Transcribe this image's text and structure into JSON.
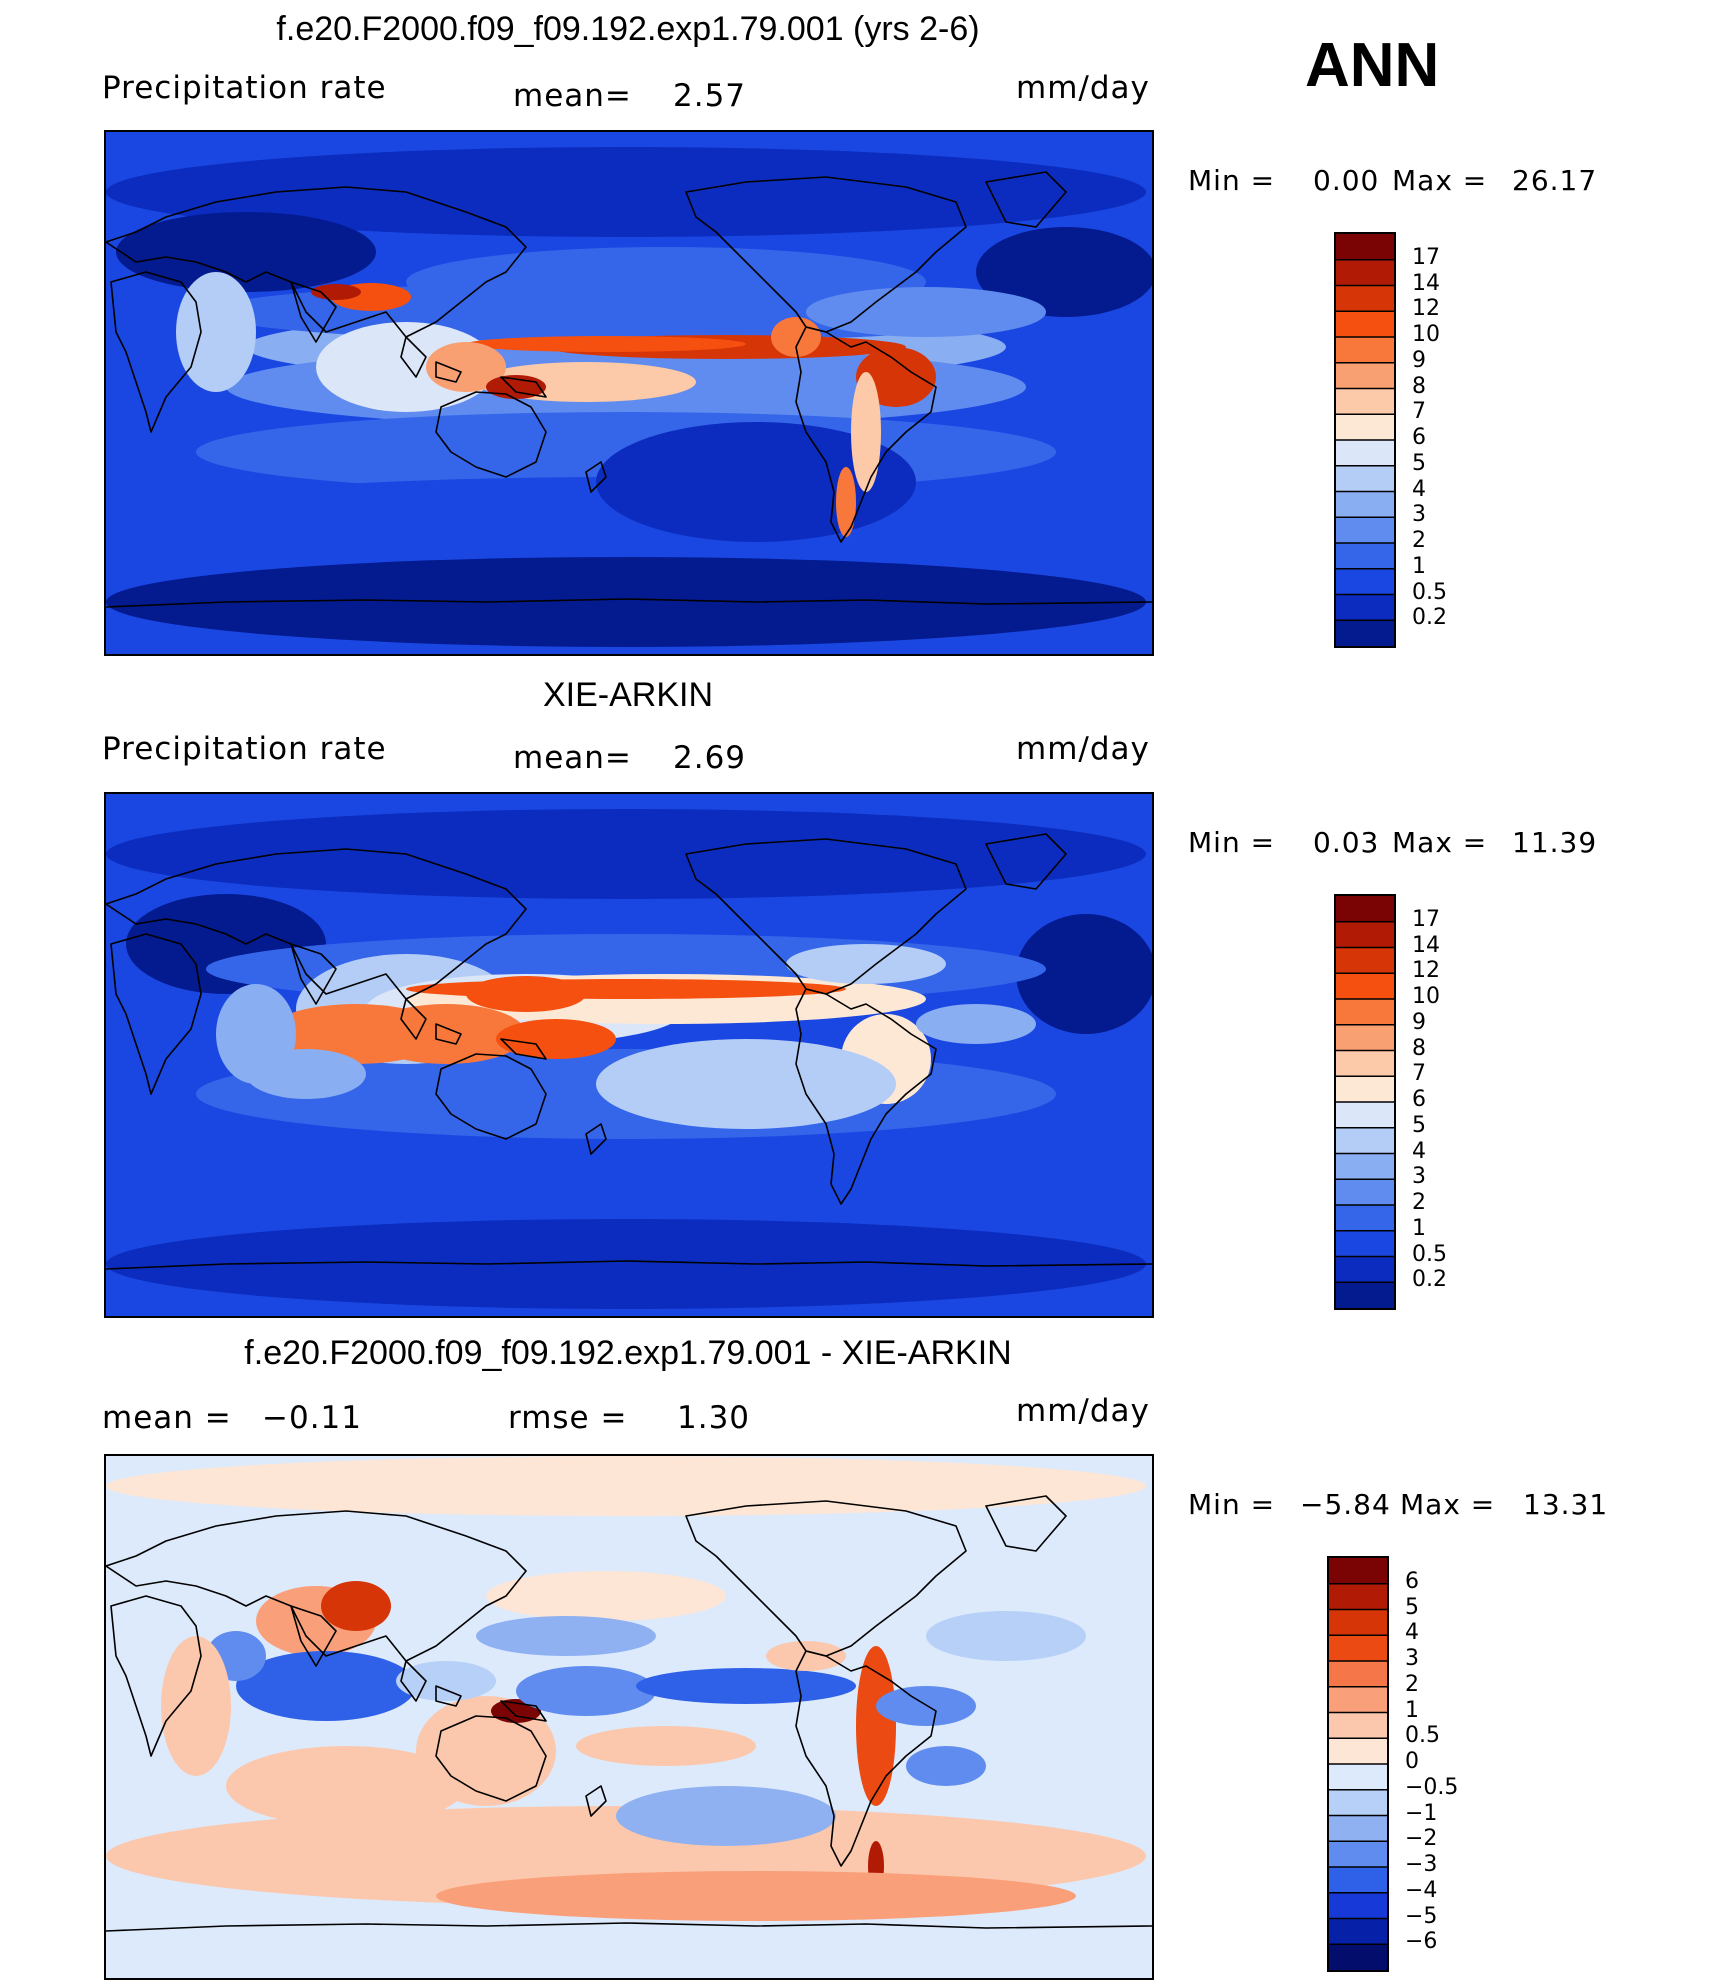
{
  "season": "ANN",
  "panels": [
    {
      "title": "f.e20.F2000.f09_f09.192.exp1.79.001 (yrs 2-6)",
      "left_label": "Precipitation  rate",
      "mid_label": "mean=",
      "mid_value": "2.57",
      "units": "mm/day",
      "minmax": {
        "min_label": "Min  =",
        "min_value": "0.00",
        "max_label": "Max  =",
        "max_value": "26.17"
      },
      "colorbar": {
        "levels": [
          "17",
          "14",
          "12",
          "10",
          "9",
          "8",
          "7",
          "6",
          "5",
          "4",
          "3",
          "2",
          "1",
          "0.5",
          "0.2"
        ]
      }
    },
    {
      "title": "XIE-ARKIN",
      "left_label": "Precipitation  rate",
      "mid_label": "mean=",
      "mid_value": "2.69",
      "units": "mm/day",
      "minmax": {
        "min_label": "Min  =",
        "min_value": "0.03",
        "max_label": "Max  =",
        "max_value": "11.39"
      },
      "colorbar": {
        "levels": [
          "17",
          "14",
          "12",
          "10",
          "9",
          "8",
          "7",
          "6",
          "5",
          "4",
          "3",
          "2",
          "1",
          "0.5",
          "0.2"
        ]
      }
    },
    {
      "title": "f.e20.F2000.f09_f09.192.exp1.79.001 - XIE-ARKIN",
      "left_label": "mean  =",
      "left_value": "−0.11",
      "mid_label": "rmse  =",
      "mid_value": "1.30",
      "units": "mm/day",
      "minmax": {
        "min_label": "Min  =",
        "min_value": "−5.84",
        "max_label": "Max  =",
        "max_value": "13.31"
      },
      "colorbar": {
        "levels": [
          "6",
          "5",
          "4",
          "3",
          "2",
          "1",
          "0.5",
          "0",
          "−0.5",
          "−1",
          "−2",
          "−3",
          "−4",
          "−5",
          "−6"
        ]
      }
    }
  ],
  "colors": {
    "precip_scale": [
      "#7a0403",
      "#b11a05",
      "#d63508",
      "#f5500f",
      "#f8783b",
      "#f9a073",
      "#fcc9a9",
      "#fde8d6",
      "#dbe6f9",
      "#b3cdf7",
      "#8aaef2",
      "#5f8cee",
      "#3566ea",
      "#1a47e2",
      "#0b2cbf",
      "#041a8f"
    ],
    "diff_scale": [
      "#7a0403",
      "#b11a05",
      "#d63508",
      "#ec4a13",
      "#f57648",
      "#f9a07a",
      "#fcc8ad",
      "#fde6d6",
      "#dceafb",
      "#b7d0f7",
      "#8fb1f2",
      "#5f8cee",
      "#2f60e8",
      "#1639d8",
      "#0720a8",
      "#020d6c"
    ]
  },
  "chart_data": [
    {
      "type": "heatmap",
      "title": "f.e20.F2000.f09_f09.192.exp1.79.001 (yrs 2-6)",
      "variable": "Precipitation  rate",
      "units": "mm/day",
      "mean": 2.57,
      "min": 0.0,
      "max": 26.17,
      "contour_levels": [
        0.2,
        0.5,
        1,
        2,
        3,
        4,
        5,
        6,
        7,
        8,
        9,
        10,
        12,
        14,
        17
      ]
    },
    {
      "type": "heatmap",
      "title": "XIE-ARKIN",
      "variable": "Precipitation  rate",
      "units": "mm/day",
      "mean": 2.69,
      "min": 0.03,
      "max": 11.39,
      "contour_levels": [
        0.2,
        0.5,
        1,
        2,
        3,
        4,
        5,
        6,
        7,
        8,
        9,
        10,
        12,
        14,
        17
      ]
    },
    {
      "type": "heatmap",
      "title": "f.e20.F2000.f09_f09.192.exp1.79.001 - XIE-ARKIN",
      "units": "mm/day",
      "mean": -0.11,
      "rmse": 1.3,
      "min": -5.84,
      "max": 13.31,
      "contour_levels": [
        -6,
        -5,
        -4,
        -3,
        -2,
        -1,
        -0.5,
        0,
        0.5,
        1,
        2,
        3,
        4,
        5,
        6
      ]
    }
  ]
}
